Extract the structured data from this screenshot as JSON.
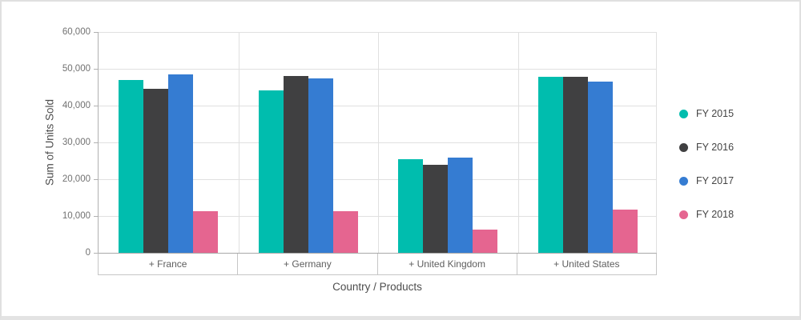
{
  "chart_data": {
    "type": "bar",
    "title": "",
    "xlabel": "Country / Products",
    "ylabel": "Sum of Units Sold",
    "categories": [
      "+ France",
      "+ Germany",
      "+ United Kingdom",
      "+ United States"
    ],
    "series": [
      {
        "name": "FY 2015",
        "color": "#00bdae",
        "values": [
          47000,
          44100,
          25400,
          47800
        ]
      },
      {
        "name": "FY 2016",
        "color": "#404041",
        "values": [
          44600,
          48000,
          23900,
          47800
        ]
      },
      {
        "name": "FY 2017",
        "color": "#357cd2",
        "values": [
          48500,
          47300,
          25900,
          46600
        ]
      },
      {
        "name": "FY 2018",
        "color": "#e56590",
        "values": [
          11400,
          11300,
          6400,
          11700
        ]
      }
    ],
    "ylim": [
      0,
      60000
    ],
    "ytick_step": 10000,
    "ytick_labels": [
      "0",
      "10,000",
      "20,000",
      "30,000",
      "40,000",
      "50,000",
      "60,000"
    ],
    "grid": true,
    "legend_position": "right",
    "theme": {
      "grid_color": "#e0e0e0",
      "axis_line_color": "#b0b0b0",
      "tick_label_color": "#717171",
      "axis_title_color": "#4d4d4d",
      "category_label_color": "#5e5e5e",
      "legend_label_color": "#454545",
      "strip_border_color": "#c6c6c6",
      "card_border_color": "#e0e0e0"
    }
  }
}
